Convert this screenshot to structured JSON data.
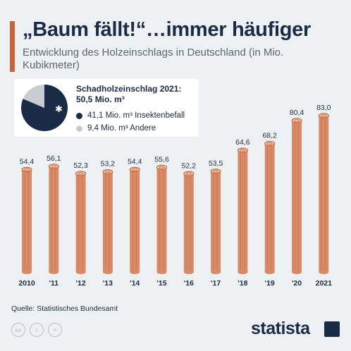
{
  "header": {
    "title": "„Baum fällt!“…immer häufiger",
    "subtitle": "Entwicklung des Holzeinschlags in Deutschland (in Mio. Kubikmeter)"
  },
  "inset": {
    "title_line1": "Schadholzeinschlag 2021:",
    "title_line2": "50,5 Mio. m³",
    "legend": [
      {
        "label": "41,1 Mio. m³ Insektenbefall",
        "value": 41.1,
        "color": "#1a2b45"
      },
      {
        "label": "9,4 Mio. m³ Andere",
        "value": 9.4,
        "color": "#c9cdd2"
      }
    ]
  },
  "footer": {
    "source": "Quelle: Statistisches Bundesamt",
    "brand": "statista",
    "license_icons": [
      "cc-icon",
      "by-icon",
      "nd-icon"
    ]
  },
  "colors": {
    "accent": "#c8633b",
    "navy": "#1a2b45",
    "log": "#d98a66",
    "log_dark": "#b8613b",
    "background": "#eef1f4"
  },
  "chart_data": {
    "type": "bar",
    "categories": [
      "2010",
      "'11",
      "'12",
      "'13",
      "'14",
      "'15",
      "'16",
      "'17",
      "'18",
      "'19",
      "'20",
      "2021"
    ],
    "values": [
      54.4,
      56.1,
      52.3,
      53.2,
      54.4,
      55.6,
      52.2,
      53.5,
      64.6,
      68.2,
      80.4,
      83.0
    ],
    "value_labels": [
      "54,4",
      "56,1",
      "52,3",
      "53,2",
      "54,4",
      "55,6",
      "52,2",
      "53,5",
      "64,6",
      "68,2",
      "80,4",
      "83,0"
    ],
    "title": "„Baum fällt!“…immer häufiger",
    "xlabel": "",
    "ylabel": "",
    "ylim": [
      0,
      83.0
    ],
    "grid": false,
    "bar_style": "log"
  }
}
